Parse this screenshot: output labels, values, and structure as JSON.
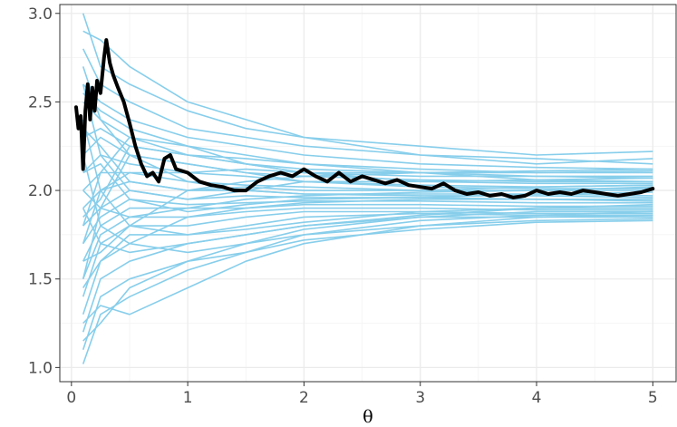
{
  "chart_data": {
    "type": "line",
    "title": "",
    "xlabel": "θ",
    "ylabel": "",
    "xlim": [
      -0.1,
      5.2
    ],
    "ylim": [
      0.92,
      3.05
    ],
    "x_ticks": [
      0,
      1,
      2,
      3,
      4,
      5
    ],
    "y_ticks": [
      1.0,
      1.5,
      2.0,
      2.5,
      3.0
    ],
    "x_tick_labels": [
      "0",
      "1",
      "2",
      "3",
      "4",
      "5"
    ],
    "y_tick_labels": [
      "1.0",
      "1.5",
      "2.0",
      "2.5",
      "3.0"
    ],
    "grid": true,
    "theme": "bw",
    "background_series_color": "#87CEEB",
    "highlight_series_color": "#000000",
    "background_series": [
      {
        "x": [
          0.1,
          0.25,
          0.5,
          1,
          1.5,
          2,
          3,
          4,
          5
        ],
        "y": [
          3.0,
          2.7,
          2.6,
          2.45,
          2.35,
          2.3,
          2.25,
          2.2,
          2.22
        ]
      },
      {
        "x": [
          0.1,
          0.25,
          0.5,
          1,
          1.5,
          2,
          3,
          4,
          5
        ],
        "y": [
          2.9,
          2.85,
          2.7,
          2.5,
          2.4,
          2.3,
          2.2,
          2.15,
          2.18
        ]
      },
      {
        "x": [
          0.1,
          0.25,
          0.5,
          1,
          1.5,
          2,
          3,
          4,
          5
        ],
        "y": [
          2.8,
          2.6,
          2.5,
          2.35,
          2.3,
          2.25,
          2.2,
          2.18,
          2.15
        ]
      },
      {
        "x": [
          0.1,
          0.25,
          0.5,
          1,
          1.5,
          2,
          3,
          4,
          5
        ],
        "y": [
          2.6,
          2.5,
          2.4,
          2.3,
          2.25,
          2.2,
          2.15,
          2.13,
          2.12
        ]
      },
      {
        "x": [
          0.1,
          0.25,
          0.5,
          1,
          1.5,
          2,
          3,
          4,
          5
        ],
        "y": [
          2.5,
          2.4,
          2.3,
          2.2,
          2.18,
          2.15,
          2.12,
          2.1,
          2.1
        ]
      },
      {
        "x": [
          0.1,
          0.25,
          0.5,
          1,
          1.5,
          2,
          3,
          4,
          5
        ],
        "y": [
          2.3,
          2.35,
          2.25,
          2.2,
          2.15,
          2.1,
          2.1,
          2.08,
          2.07
        ]
      },
      {
        "x": [
          0.1,
          0.25,
          0.5,
          1,
          1.5,
          2,
          3,
          4,
          5
        ],
        "y": [
          2.2,
          2.3,
          2.2,
          2.15,
          2.1,
          2.08,
          2.06,
          2.05,
          2.05
        ]
      },
      {
        "x": [
          0.1,
          0.25,
          0.5,
          1,
          1.5,
          2,
          3,
          4,
          5
        ],
        "y": [
          2.1,
          2.2,
          2.15,
          2.1,
          2.08,
          2.05,
          2.03,
          2.02,
          2.03
        ]
      },
      {
        "x": [
          0.1,
          0.25,
          0.5,
          1,
          1.5,
          2,
          3,
          4,
          5
        ],
        "y": [
          2.0,
          2.1,
          2.1,
          2.05,
          2.03,
          2.02,
          2.0,
          2.0,
          2.0
        ]
      },
      {
        "x": [
          0.1,
          0.25,
          0.5,
          1,
          1.5,
          2,
          3,
          4,
          5
        ],
        "y": [
          1.9,
          2.0,
          2.05,
          2.0,
          2.0,
          1.98,
          1.98,
          1.98,
          1.97
        ]
      },
      {
        "x": [
          0.1,
          0.25,
          0.5,
          1,
          1.5,
          2,
          3,
          4,
          5
        ],
        "y": [
          1.8,
          1.9,
          2.0,
          1.95,
          1.97,
          1.96,
          1.96,
          1.95,
          1.95
        ]
      },
      {
        "x": [
          0.1,
          0.25,
          0.5,
          1,
          1.5,
          2,
          3,
          4,
          5
        ],
        "y": [
          1.7,
          1.85,
          1.95,
          1.92,
          1.93,
          1.94,
          1.94,
          1.93,
          1.93
        ]
      },
      {
        "x": [
          0.1,
          0.25,
          0.5,
          1,
          1.5,
          2,
          3,
          4,
          5
        ],
        "y": [
          1.6,
          1.8,
          1.9,
          1.9,
          1.9,
          1.92,
          1.92,
          1.91,
          1.91
        ]
      },
      {
        "x": [
          0.1,
          0.25,
          0.5,
          1,
          1.5,
          2,
          3,
          4,
          5
        ],
        "y": [
          1.5,
          1.75,
          1.85,
          1.85,
          1.88,
          1.9,
          1.9,
          1.89,
          1.89
        ]
      },
      {
        "x": [
          0.1,
          0.25,
          0.5,
          1,
          1.5,
          2,
          3,
          4,
          5
        ],
        "y": [
          1.4,
          1.7,
          1.8,
          1.8,
          1.85,
          1.88,
          1.88,
          1.87,
          1.87
        ]
      },
      {
        "x": [
          0.1,
          0.25,
          0.5,
          1,
          1.5,
          2,
          3,
          4,
          5
        ],
        "y": [
          1.3,
          1.6,
          1.75,
          1.75,
          1.8,
          1.85,
          1.87,
          1.86,
          1.86
        ]
      },
      {
        "x": [
          0.1,
          0.25,
          0.5,
          1,
          1.5,
          2,
          3,
          4,
          5
        ],
        "y": [
          1.2,
          1.5,
          1.6,
          1.7,
          1.75,
          1.8,
          1.85,
          1.85,
          1.85
        ]
      },
      {
        "x": [
          0.1,
          0.25,
          0.5,
          1,
          1.5,
          2,
          3,
          4,
          5
        ],
        "y": [
          1.1,
          1.4,
          1.5,
          1.6,
          1.7,
          1.75,
          1.8,
          1.83,
          1.84
        ]
      },
      {
        "x": [
          0.1,
          0.25,
          0.5,
          1,
          1.5,
          2,
          3,
          4,
          5
        ],
        "y": [
          1.02,
          1.3,
          1.4,
          1.55,
          1.65,
          1.72,
          1.78,
          1.82,
          1.83
        ]
      },
      {
        "x": [
          0.1,
          0.25,
          0.5,
          1,
          1.5,
          2,
          3,
          4,
          5
        ],
        "y": [
          1.25,
          1.35,
          1.3,
          1.45,
          1.6,
          1.7,
          1.8,
          1.85,
          1.86
        ]
      },
      {
        "x": [
          0.1,
          0.25,
          0.5,
          1,
          1.5,
          2,
          3,
          4,
          5
        ],
        "y": [
          2.7,
          2.4,
          2.2,
          2.05,
          2.0,
          1.98,
          1.97,
          1.97,
          1.96
        ]
      },
      {
        "x": [
          0.1,
          0.25,
          0.5,
          1,
          1.5,
          2,
          3,
          4,
          5
        ],
        "y": [
          1.8,
          2.1,
          2.3,
          2.25,
          2.15,
          2.1,
          2.05,
          2.04,
          2.04
        ]
      },
      {
        "x": [
          0.1,
          0.25,
          0.5,
          1,
          1.5,
          2,
          3,
          4,
          5
        ],
        "y": [
          1.5,
          1.9,
          2.2,
          2.15,
          2.1,
          2.05,
          2.02,
          2.01,
          2.01
        ]
      },
      {
        "x": [
          0.1,
          0.25,
          0.5,
          1,
          1.5,
          2,
          3,
          4,
          5
        ],
        "y": [
          2.4,
          2.0,
          1.8,
          1.75,
          1.78,
          1.82,
          1.88,
          1.9,
          1.9
        ]
      },
      {
        "x": [
          0.1,
          0.25,
          0.5,
          1,
          1.5,
          2,
          3,
          4,
          5
        ],
        "y": [
          2.2,
          1.8,
          1.7,
          1.65,
          1.7,
          1.78,
          1.85,
          1.88,
          1.88
        ]
      },
      {
        "x": [
          0.1,
          0.25,
          0.5,
          1,
          1.5,
          2,
          3,
          4,
          5
        ],
        "y": [
          1.9,
          1.7,
          1.65,
          1.7,
          1.75,
          1.8,
          1.86,
          1.9,
          1.92
        ]
      },
      {
        "x": [
          0.1,
          0.25,
          0.5,
          1,
          1.5,
          2,
          3,
          4,
          5
        ],
        "y": [
          2.6,
          2.2,
          2.0,
          1.95,
          2.0,
          2.05,
          2.05,
          2.06,
          2.07
        ]
      },
      {
        "x": [
          0.1,
          0.25,
          0.5,
          1,
          1.5,
          2,
          3,
          4,
          5
        ],
        "y": [
          1.7,
          2.0,
          2.1,
          2.1,
          2.12,
          2.1,
          2.08,
          2.08,
          2.08
        ]
      },
      {
        "x": [
          0.1,
          0.25,
          0.5,
          1,
          1.5,
          2,
          3,
          4,
          5
        ],
        "y": [
          2.0,
          1.9,
          1.85,
          1.9,
          1.95,
          1.97,
          1.99,
          2.0,
          2.02
        ]
      },
      {
        "x": [
          0.1,
          0.25,
          0.5,
          1,
          1.5,
          2,
          3,
          4,
          5
        ],
        "y": [
          2.1,
          2.15,
          1.95,
          1.88,
          1.92,
          1.95,
          1.96,
          1.98,
          1.99
        ]
      },
      {
        "x": [
          0.1,
          0.25,
          0.5,
          1,
          1.5,
          2,
          3,
          4,
          5
        ],
        "y": [
          1.6,
          1.65,
          1.8,
          2.0,
          2.05,
          2.08,
          2.1,
          2.11,
          2.12
        ]
      },
      {
        "x": [
          0.1,
          0.25,
          0.5,
          1,
          1.5,
          2,
          3,
          4,
          5
        ],
        "y": [
          2.35,
          2.25,
          2.05,
          2.0,
          2.02,
          2.0,
          2.0,
          2.02,
          2.03
        ]
      },
      {
        "x": [
          0.1,
          0.25,
          0.5,
          1,
          1.5,
          2,
          3,
          4,
          5
        ],
        "y": [
          1.85,
          1.95,
          2.25,
          2.2,
          2.15,
          2.12,
          2.1,
          2.1,
          2.11
        ]
      },
      {
        "x": [
          0.1,
          0.25,
          0.5,
          1,
          1.5,
          2,
          3,
          4,
          5
        ],
        "y": [
          1.45,
          1.6,
          1.7,
          1.85,
          1.9,
          1.93,
          1.95,
          1.95,
          1.94
        ]
      },
      {
        "x": [
          0.1,
          0.25,
          0.5,
          1,
          1.5,
          2,
          3,
          4,
          5
        ],
        "y": [
          1.15,
          1.25,
          1.45,
          1.6,
          1.65,
          1.75,
          1.83,
          1.86,
          1.88
        ]
      },
      {
        "x": [
          0.1,
          0.25,
          0.5,
          1,
          1.5,
          2,
          3,
          4,
          5
        ],
        "y": [
          2.55,
          2.45,
          2.35,
          2.25,
          2.2,
          2.15,
          2.1,
          2.06,
          2.05
        ]
      }
    ],
    "highlight_series": {
      "x": [
        0.04,
        0.06,
        0.08,
        0.1,
        0.12,
        0.14,
        0.16,
        0.18,
        0.2,
        0.22,
        0.25,
        0.28,
        0.3,
        0.33,
        0.36,
        0.4,
        0.45,
        0.5,
        0.55,
        0.6,
        0.65,
        0.7,
        0.75,
        0.8,
        0.85,
        0.9,
        1.0,
        1.1,
        1.2,
        1.3,
        1.4,
        1.5,
        1.6,
        1.7,
        1.8,
        1.9,
        2.0,
        2.1,
        2.2,
        2.3,
        2.4,
        2.5,
        2.6,
        2.7,
        2.8,
        2.9,
        3.0,
        3.1,
        3.2,
        3.3,
        3.4,
        3.5,
        3.6,
        3.7,
        3.8,
        3.9,
        4.0,
        4.1,
        4.2,
        4.3,
        4.4,
        4.5,
        4.6,
        4.7,
        4.8,
        4.9,
        5.0
      ],
      "y": [
        2.47,
        2.35,
        2.42,
        2.12,
        2.45,
        2.6,
        2.4,
        2.58,
        2.45,
        2.62,
        2.55,
        2.75,
        2.85,
        2.72,
        2.65,
        2.58,
        2.5,
        2.38,
        2.25,
        2.15,
        2.08,
        2.1,
        2.05,
        2.18,
        2.2,
        2.12,
        2.1,
        2.05,
        2.03,
        2.02,
        2.0,
        2.0,
        2.05,
        2.08,
        2.1,
        2.08,
        2.12,
        2.08,
        2.05,
        2.1,
        2.05,
        2.08,
        2.06,
        2.04,
        2.06,
        2.03,
        2.02,
        2.01,
        2.04,
        2.0,
        1.98,
        1.99,
        1.97,
        1.98,
        1.96,
        1.97,
        2.0,
        1.98,
        1.99,
        1.98,
        2.0,
        1.99,
        1.98,
        1.97,
        1.98,
        1.99,
        2.01
      ]
    }
  }
}
